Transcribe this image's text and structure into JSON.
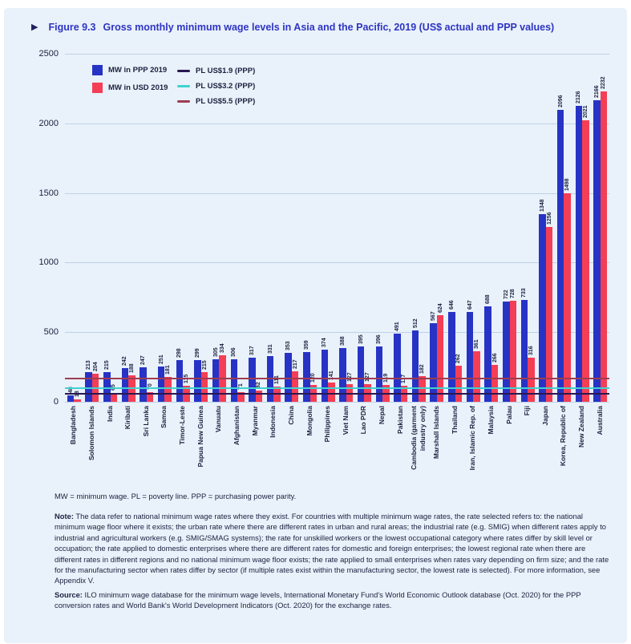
{
  "figure": {
    "marker": "▶",
    "label": "Figure 9.3",
    "title": "Gross monthly minimum wage levels in Asia and the Pacific, 2019 (US$ actual and PPP values)"
  },
  "colors": {
    "panel_bg": "#e9f1fa",
    "title_blue": "#2e35c3",
    "bar_ppp": "#2733c5",
    "bar_usd": "#f43e55",
    "gridline": "#bdd3e8",
    "text_dark": "#1b2240",
    "pl_19": "#2a1850",
    "pl_32": "#3ed3cf",
    "pl_55": "#9e3c50"
  },
  "legend": {
    "bars": [
      {
        "label": "MW in PPP 2019",
        "color": "#2733c5"
      },
      {
        "label": "MW in USD 2019",
        "color": "#f43e55"
      }
    ],
    "lines": [
      {
        "label": "PL US$1.9 (PPP)",
        "color": "#2a1850"
      },
      {
        "label": "PL US$3.2 (PPP)",
        "color": "#3ed3cf"
      },
      {
        "label": "PL US$5.5 (PPP)",
        "color": "#9e3c50"
      }
    ]
  },
  "chart_data": {
    "type": "bar",
    "title": "Gross monthly minimum wage levels in Asia and the Pacific, 2019 (US$ actual and PPP values)",
    "xlabel": "",
    "ylabel": "",
    "ylim": [
      0,
      2500
    ],
    "yticks": [
      0,
      500,
      1000,
      1500,
      2000,
      2500
    ],
    "grid": true,
    "legend_position": "top-left",
    "categories": [
      "Bangladesh",
      "Solomon Islands",
      "India",
      "Kiribati",
      "Sri Lanka",
      "Samoa",
      "Timor-Leste",
      "Papua New Guinea",
      "Vanuatu",
      "Afghanistan",
      "Myanmar",
      "Indonesia",
      "China",
      "Mongolia",
      "Philippines",
      "Viet Nam",
      "Lao PDR",
      "Nepal",
      "Pakistan",
      "Cambodia (garment industry only)",
      "Marshall Islands",
      "Thailand",
      "Iran, Islamic Rep. of",
      "Malaysia",
      "Palau",
      "Fiji",
      "Japan",
      "Korea, Republic of",
      "New Zealand",
      "Australia"
    ],
    "series": [
      {
        "name": "MW in PPP 2019",
        "color": "#2733c5",
        "values": [
          48,
          213,
          215,
          242,
          247,
          251,
          298,
          299,
          305,
          306,
          317,
          331,
          353,
          359,
          374,
          388,
          395,
          396,
          491,
          512,
          567,
          646,
          647,
          688,
          722,
          733,
          1348,
          2096,
          2126,
          2166
        ]
      },
      {
        "name": "MW in USD 2019",
        "color": "#f43e55",
        "values": [
          18,
          204,
          65,
          188,
          70,
          181,
          115,
          215,
          334,
          71,
          82,
          111,
          217,
          120,
          141,
          127,
          127,
          119,
          117,
          182,
          624,
          262,
          361,
          266,
          728,
          316,
          1256,
          1498,
          2021,
          2232
        ]
      }
    ],
    "reference_lines": [
      {
        "label": "PL US$1.9 (PPP)",
        "monthly_value": 58,
        "color": "#2a1850"
      },
      {
        "label": "PL US$3.2 (PPP)",
        "monthly_value": 97,
        "color": "#3ed3cf"
      },
      {
        "label": "PL US$5.5 (PPP)",
        "monthly_value": 167,
        "color": "#9e3c50"
      }
    ]
  },
  "footer": {
    "abbrev": "MW = minimum wage. PL = poverty line. PPP = purchasing power parity.",
    "note_label": "Note:",
    "note": "The data refer to national minimum wage rates where they exist. For countries with multiple minimum wage rates, the rate selected refers to: the national minimum wage floor where it exists; the urban rate where there are different rates in urban and rural areas; the industrial rate (e.g. SMIG) when different rates apply to industrial and agricultural workers (e.g. SMIG/SMAG systems); the rate for unskilled workers or the lowest occupational category where rates differ by skill level or occupation; the rate applied to domestic enterprises where there are different rates for domestic and foreign enterprises; the lowest regional rate when there are different rates in different regions and no national minimum wage floor exists; the rate applied to small enterprises when rates vary depending on firm size; and the rate for the manufacturing sector when rates differ by sector (if multiple rates exist within the manufacturing sector, the lowest rate is selected). For more information, see Appendix V.",
    "source_label": "Source:",
    "source": "ILO minimum wage database for the minimum wage levels, International Monetary Fund's World Economic Outlook database (Oct. 2020) for the PPP conversion rates and World Bank's World Development Indicators (Oct. 2020) for the exchange rates."
  }
}
